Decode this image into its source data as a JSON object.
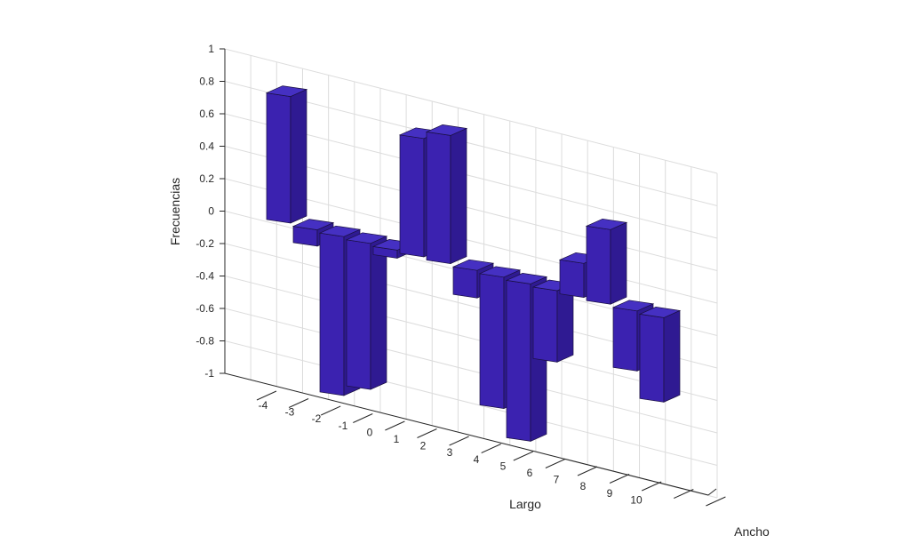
{
  "chart_data": {
    "type": "bar3d",
    "ylabel": "Frecuencias",
    "xlabel": "Largo",
    "zlabel": "Ancho",
    "ylim": [
      -1,
      1
    ],
    "yticks": [
      "1",
      "0.8",
      "0.6",
      "0.4",
      "0.2",
      "0",
      "-0.2",
      "-0.4",
      "-0.6",
      "-0.8",
      "-1"
    ],
    "categories": [
      "-4",
      "-3",
      "-2",
      "-1",
      "0",
      "1",
      "2",
      "3",
      "4",
      "5",
      "6",
      "7",
      "8",
      "9",
      "10"
    ],
    "values": [
      0.78,
      -0.1,
      -0.98,
      -0.9,
      -0.05,
      0.73,
      0.79,
      -0.17,
      -0.81,
      -0.97,
      -0.44,
      0.21,
      0.46,
      -0.37,
      -0.52
    ],
    "grid": true,
    "colors": {
      "bar_front": "#3b22b0",
      "bar_side": "#2f1a92",
      "bar_top": "#4530c2",
      "grid": "#dcdcdc",
      "axis": "#262626"
    }
  }
}
